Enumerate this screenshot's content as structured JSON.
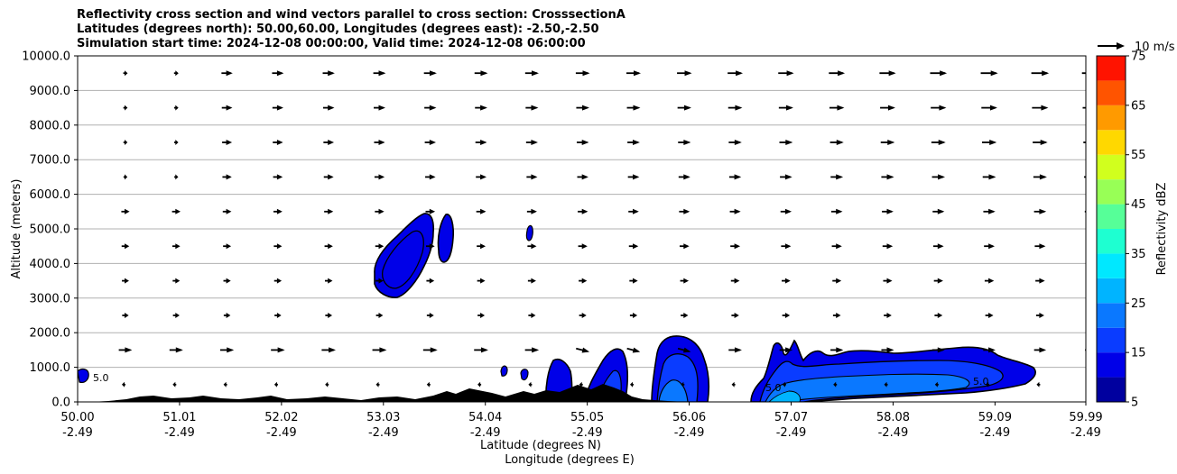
{
  "chart_data": {
    "type": "cross-section",
    "title_lines": [
      "Reflectivity cross section and wind vectors parallel to cross section: CrosssectionA",
      "Latitudes (degrees north): 50.00,60.00, Longitudes (degrees east): -2.50,-2.50",
      "Simulation start time: 2024-12-08 00:00:00, Valid time: 2024-12-08 06:00:00"
    ],
    "ylabel": "Altitude (meters)",
    "xlabel_lines": [
      "Latitude (degrees N)",
      "Longitude (degrees E)"
    ],
    "xlim": [
      50.0,
      59.99
    ],
    "ylim": [
      0,
      10000
    ],
    "y_ticks": [
      "0.0",
      "1000.0",
      "2000.0",
      "3000.0",
      "4000.0",
      "5000.0",
      "6000.0",
      "7000.0",
      "8000.0",
      "9000.0",
      "10000.0"
    ],
    "x_ticks": [
      {
        "lat": "50.00",
        "lon": "-2.49"
      },
      {
        "lat": "51.01",
        "lon": "-2.49"
      },
      {
        "lat": "52.02",
        "lon": "-2.49"
      },
      {
        "lat": "53.03",
        "lon": "-2.49"
      },
      {
        "lat": "54.04",
        "lon": "-2.49"
      },
      {
        "lat": "55.05",
        "lon": "-2.49"
      },
      {
        "lat": "56.06",
        "lon": "-2.49"
      },
      {
        "lat": "57.07",
        "lon": "-2.49"
      },
      {
        "lat": "58.08",
        "lon": "-2.49"
      },
      {
        "lat": "59.09",
        "lon": "-2.49"
      },
      {
        "lat": "59.99",
        "lon": "-2.49"
      }
    ],
    "grid": "horizontal",
    "quiver_key": "10 m/s",
    "colorbar": {
      "label": "Reflectivity dBZ",
      "bounds": [
        5,
        10,
        15,
        20,
        25,
        30,
        35,
        40,
        45,
        50,
        55,
        60,
        65,
        70,
        75
      ],
      "tick_labels": [
        "5",
        "15",
        "25",
        "35",
        "45",
        "55",
        "65",
        "75"
      ],
      "colors": [
        "#00009f",
        "#0000e8",
        "#0a3cff",
        "#0a78ff",
        "#00b4ff",
        "#00e8ff",
        "#1effd1",
        "#56ff98",
        "#98ff56",
        "#d1ff1e",
        "#ffd800",
        "#ff9a00",
        "#ff5400",
        "#ff1300",
        "#a60000"
      ]
    },
    "contour_labels": [
      "5.0"
    ],
    "reflectivity_cells": [
      {
        "lat_range": [
          53.08,
          53.75
        ],
        "alt_range": [
          3000,
          5450
        ],
        "max_dbz": 15
      },
      {
        "lat_range": [
          54.43,
          54.48
        ],
        "alt_range": [
          4500,
          5100
        ],
        "max_dbz": 10
      },
      {
        "lat_range": [
          55.37,
          55.62
        ],
        "alt_range": [
          100,
          1600
        ],
        "max_dbz": 20
      },
      {
        "lat_range": [
          55.84,
          56.2
        ],
        "alt_range": [
          0,
          1870
        ],
        "max_dbz": 25
      },
      {
        "lat_range": [
          56.68,
          59.35
        ],
        "alt_range": [
          0,
          1780
        ],
        "max_dbz": 30
      }
    ]
  }
}
